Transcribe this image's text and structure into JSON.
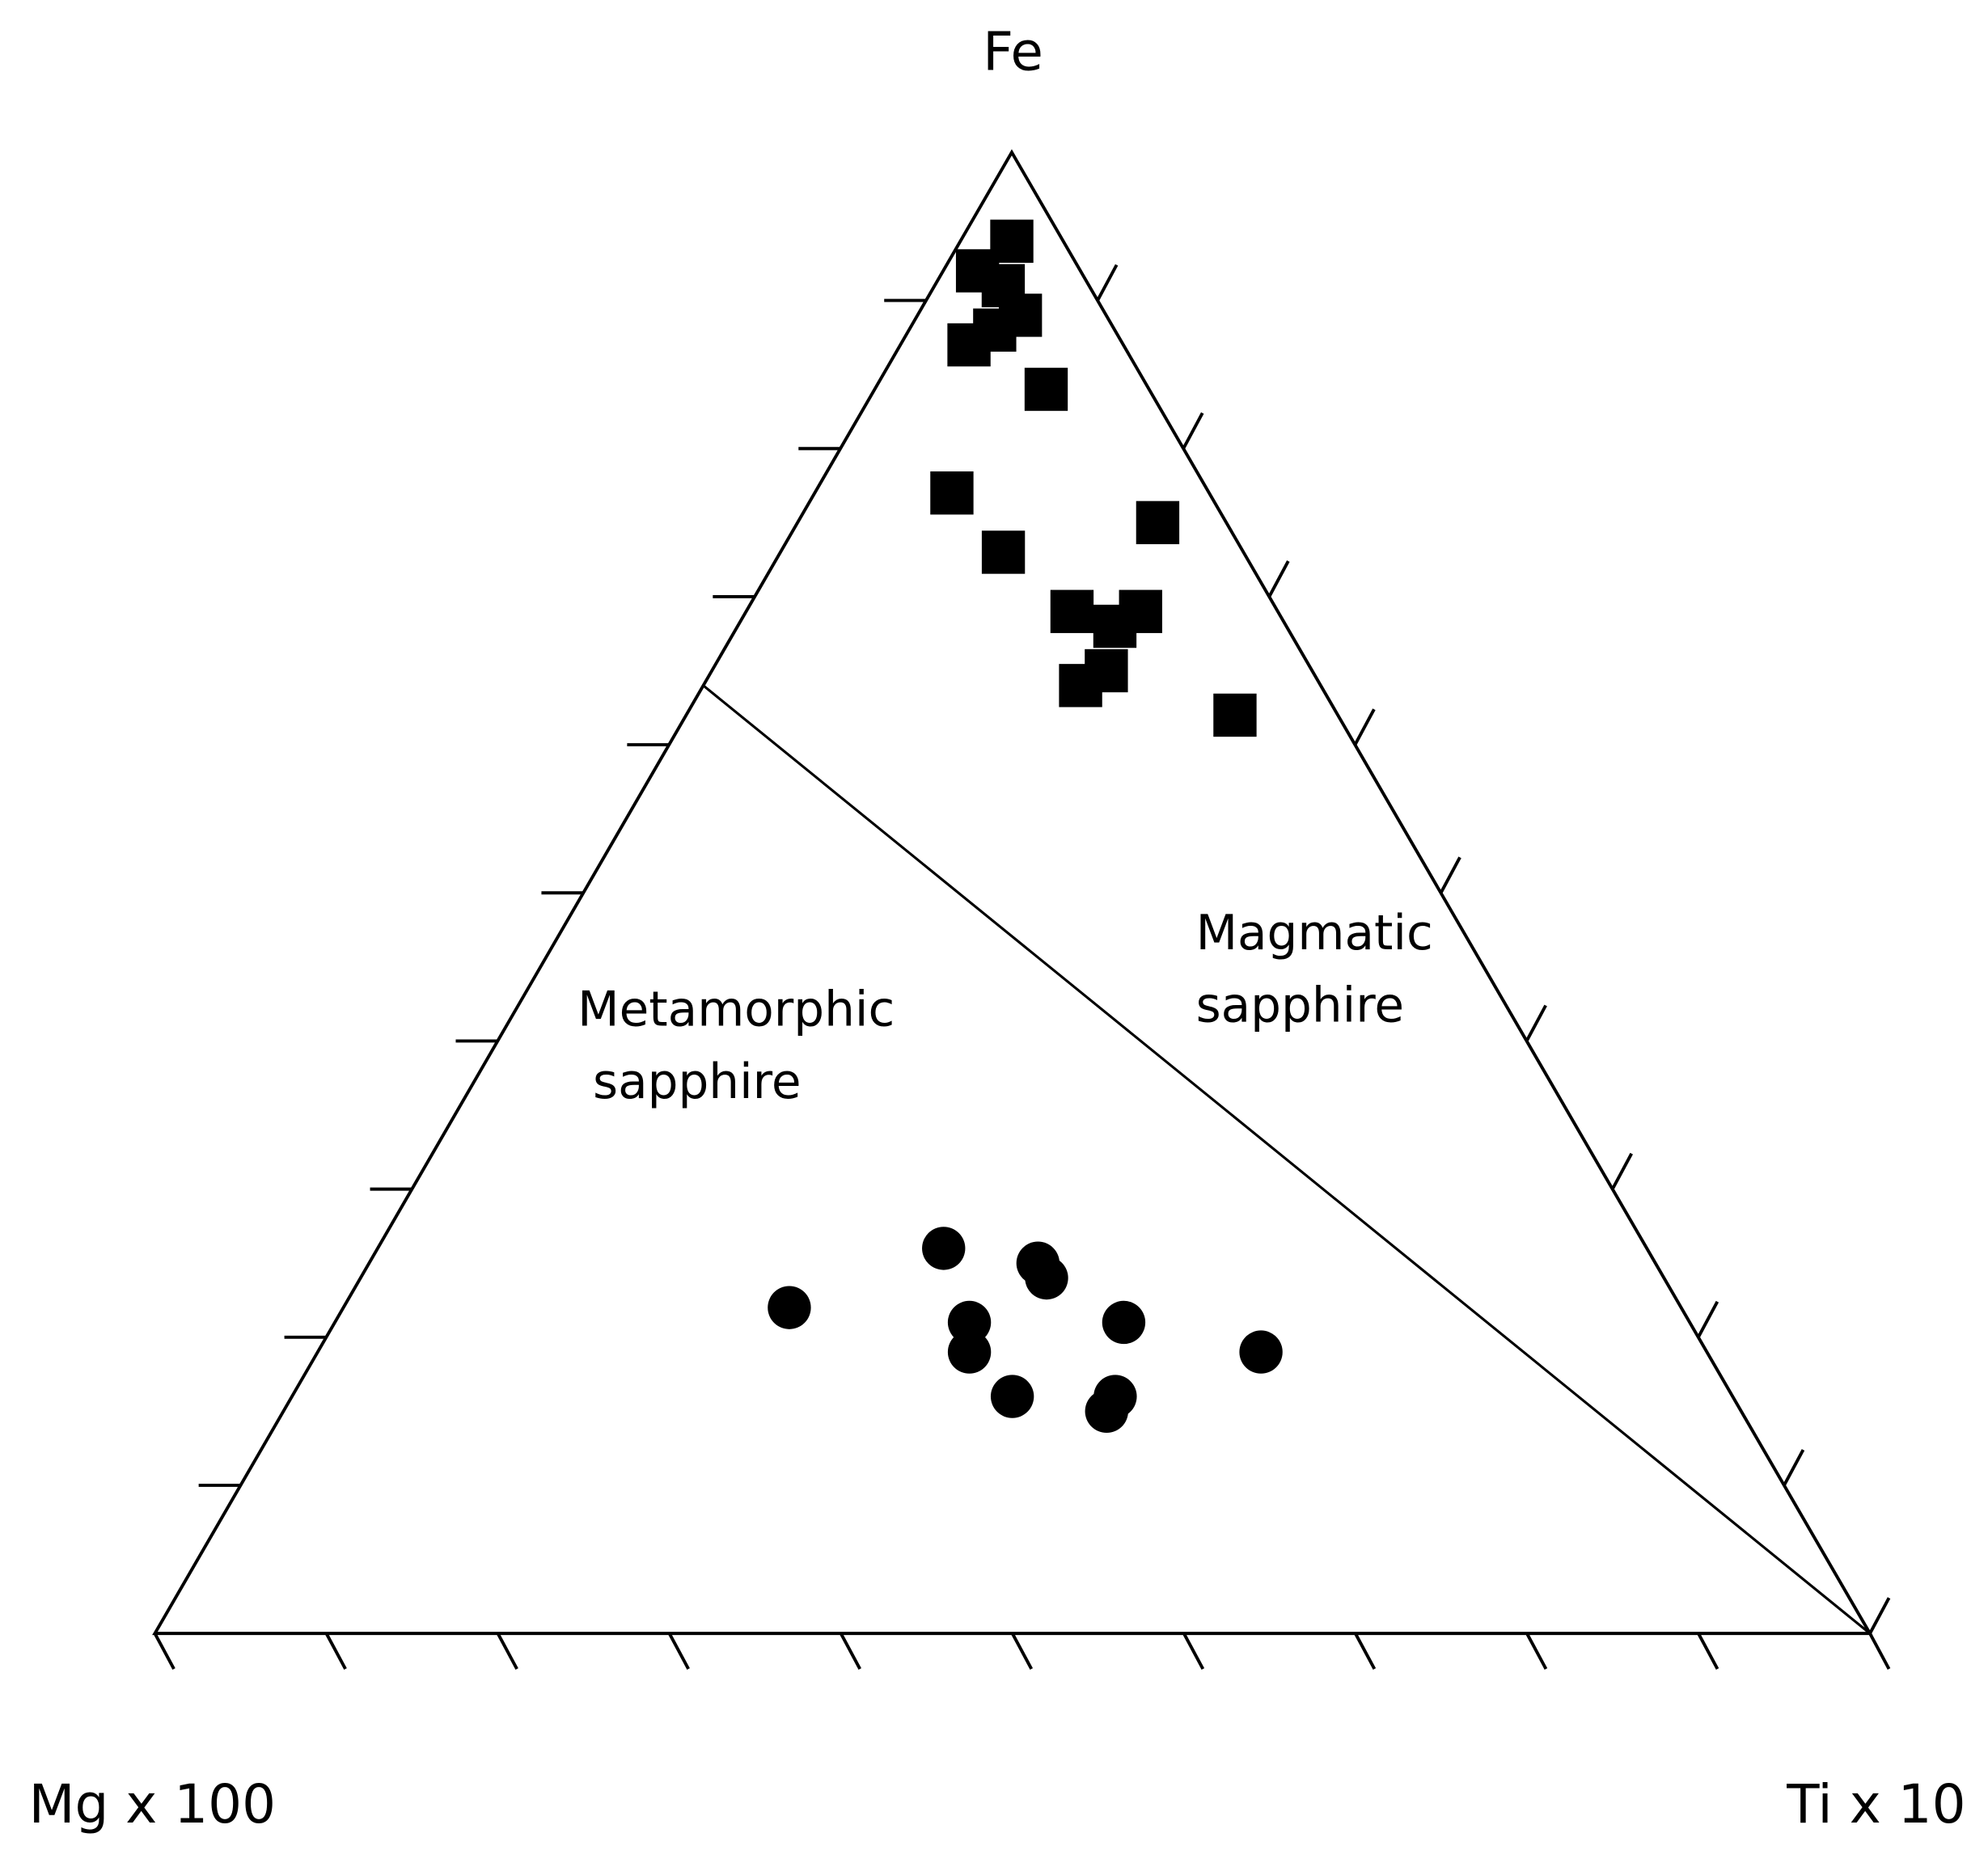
{
  "chart_data": {
    "type": "ternary",
    "axes": {
      "top": "Fe",
      "left": "Mg x 100",
      "right": "Ti x 10"
    },
    "ticks": [
      0,
      10,
      20,
      30,
      40,
      50,
      60,
      70,
      80,
      90,
      100
    ],
    "boundary": [
      {
        "fe": 64,
        "ti": 0,
        "mg": 36
      },
      {
        "fe": 0,
        "ti": 100,
        "mg": 0
      }
    ],
    "regions": [
      {
        "lines": [
          "Metamorphic",
          "sapphire"
        ]
      },
      {
        "lines": [
          "Magmatic",
          "sapphire"
        ]
      }
    ],
    "series": [
      {
        "marker": "square",
        "color": "#000000",
        "fe": [
          94,
          92,
          91,
          89,
          87,
          88,
          84,
          77,
          75,
          73,
          69,
          68,
          69,
          65,
          64,
          62
        ],
        "ti": [
          3,
          2,
          4,
          6,
          4,
          5,
          10,
          8,
          21,
          13,
          19,
          22,
          23,
          23,
          22,
          32
        ],
        "mg": [
          3,
          6,
          5,
          5,
          9,
          7,
          6,
          15,
          4,
          14,
          12,
          10,
          8,
          12,
          14,
          6
        ]
      },
      {
        "marker": "circle",
        "color": "#000000",
        "fe": [
          22,
          26,
          25,
          24,
          21,
          19,
          21,
          19,
          16,
          15,
          16
        ],
        "ti": [
          26,
          33,
          39,
          40,
          37,
          38,
          46,
          55,
          42,
          48,
          48
        ],
        "mg": [
          52,
          41,
          36,
          36,
          42,
          43,
          33,
          26,
          42,
          37,
          36
        ]
      }
    ]
  }
}
